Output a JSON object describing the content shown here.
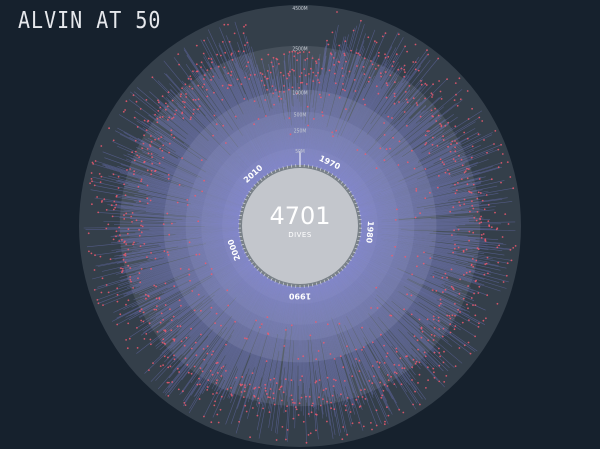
{
  "title": "ALVIN AT 50",
  "chart_data": {
    "type": "radial-bar",
    "total_value": "4701",
    "total_label": "DIVES",
    "depth_rings": [
      {
        "label": "4500M",
        "depth": 4500
      },
      {
        "label": "2500M",
        "depth": 2500
      },
      {
        "label": "1000M",
        "depth": 1000
      },
      {
        "label": "500M",
        "depth": 500
      },
      {
        "label": "250M",
        "depth": 250
      },
      {
        "label": "50M",
        "depth": 50
      }
    ],
    "year_labels": [
      {
        "label": "1970",
        "bearing": 25
      },
      {
        "label": "1980",
        "bearing": 95
      },
      {
        "label": "1990",
        "bearing": 180
      },
      {
        "label": "2000",
        "bearing": 250
      },
      {
        "label": "2010",
        "bearing": 318
      }
    ],
    "dive_count": 4701,
    "max_depth": 4500,
    "colors": {
      "background": "#16212d",
      "bar": "#8a8cf0",
      "dive_dot": "#f05a6e",
      "ring_outer": "#3a4450",
      "ring_mid": "#4a535e",
      "ring_inner": "#5e6670",
      "center": "#c3c6cc",
      "text": "#ffffff"
    }
  }
}
